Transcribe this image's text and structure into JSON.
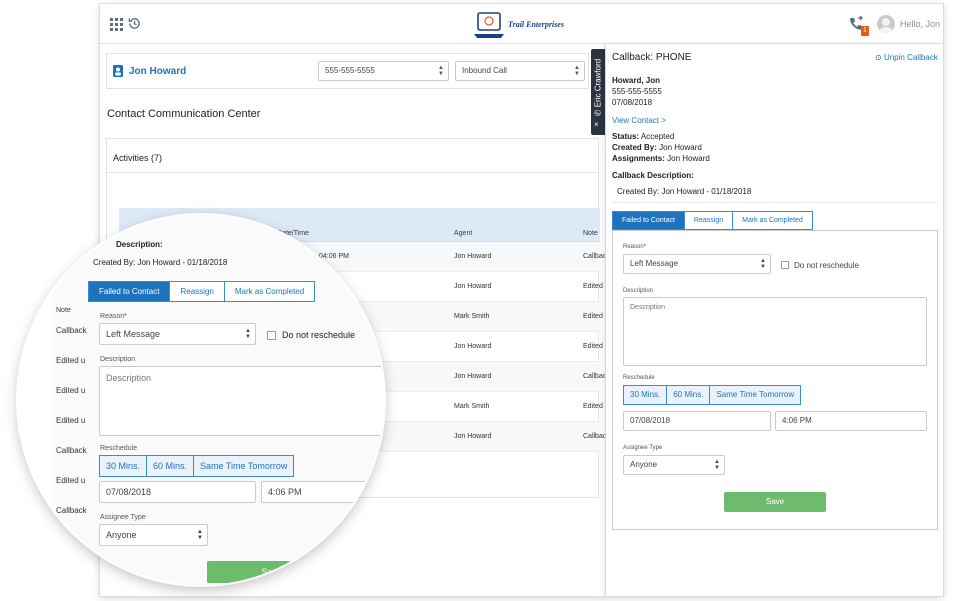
{
  "header": {
    "logo_text": "Trail Enterprises",
    "notification_count": "1",
    "greeting": "Hello, Jon"
  },
  "contact_bar": {
    "name": "Jon Howard",
    "phone_select": "555-555-5555",
    "call_type_select": "Inbound Call"
  },
  "page_title": "Contact Communication Center",
  "activities": {
    "title": "Activities (7)",
    "columns": [
      "",
      "Date/Time",
      "Agent",
      "Note"
    ],
    "rows": [
      {
        "date": "04:06 PM",
        "agent": "Jon Howard",
        "note": "Callback"
      },
      {
        "date": "",
        "agent": "Jon Howard",
        "note": "Edited"
      },
      {
        "date": "",
        "agent": "Mark Smith",
        "note": "Edited"
      },
      {
        "date": "",
        "agent": "Jon Howard",
        "note": "Edited"
      },
      {
        "date": "",
        "agent": "Jon Howard",
        "note": "Callback"
      },
      {
        "date": "",
        "agent": "Mark Smith",
        "note": "Edited"
      },
      {
        "date": "",
        "agent": "Jon Howard",
        "note": "Callback"
      }
    ]
  },
  "side_tab": {
    "label": "Eric Crawford",
    "close": "×"
  },
  "callback": {
    "title": "Callback: PHONE",
    "unpin": "Unpin Callback",
    "contact_name": "Howard, Jon",
    "contact_phone": "555-555-5555",
    "contact_date": "07/08/2018",
    "view_contact": "View Contact >",
    "status_label": "Status:",
    "status_value": "Accepted",
    "created_by_label": "Created By:",
    "created_by_value": "Jon Howard",
    "assignments_label": "Assignments:",
    "assignments_value": "Jon Howard",
    "description_label": "Callback Description:",
    "description_created": "Created By: Jon Howard - 01/18/2018",
    "tabs": [
      "Failed to Contact",
      "Reassign",
      "Mark as Completed"
    ],
    "form": {
      "reason_label": "Reason",
      "reason_required": "*",
      "reason_value": "Left Message",
      "do_not_reschedule": "Do not reschedule",
      "description_label": "Description",
      "description_placeholder": "Description",
      "reschedule_label": "Reschedule",
      "quick_buttons": [
        "30 Mins.",
        "60 Mins.",
        "Same Time Tomorrow"
      ],
      "date_value": "07/08/2018",
      "time_value": "4:06 PM",
      "assignee_label": "Assignee Type",
      "assignee_value": "Anyone",
      "save_label": "Save"
    }
  },
  "magnifier": {
    "description_fragment": "Description:",
    "note_header": "Note",
    "note_rows": [
      "Callback",
      "Edited u",
      "Edited u",
      "Edited u",
      "Callback",
      "Edited u",
      "Callback"
    ],
    "save_fragment": "Sa"
  },
  "colors": {
    "accent": "#1e73be",
    "table_header": "#dde9f7",
    "save_green": "#6dbb6d",
    "badge_orange": "#e55a1c",
    "side_tab": "#2c3342"
  }
}
